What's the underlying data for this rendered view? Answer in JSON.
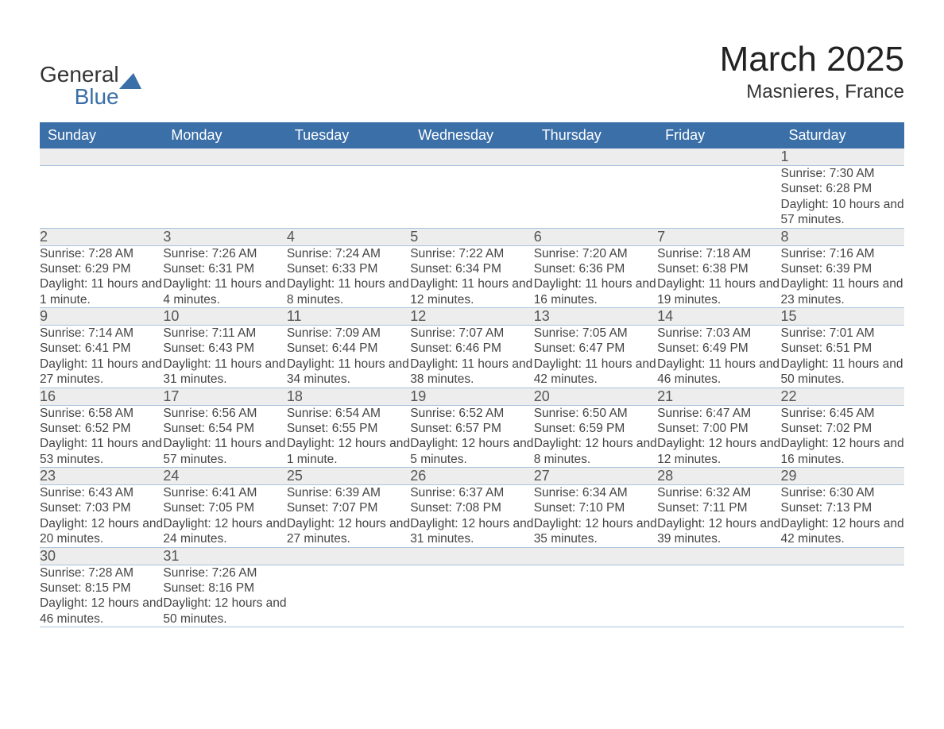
{
  "brand": {
    "line1": "General",
    "line2": "Blue"
  },
  "title": "March 2025",
  "location": "Masnieres, France",
  "colors": {
    "header_bg": "#3b6fa8",
    "header_text": "#ffffff",
    "daynum_bg": "#ededed",
    "row_divider": "#3b6fa8",
    "body_text": "#444444",
    "page_bg": "#ffffff"
  },
  "typography": {
    "title_fontsize": 44,
    "location_fontsize": 24,
    "header_fontsize": 18,
    "daynum_fontsize": 18,
    "cell_fontsize": 15.5
  },
  "weekdays": [
    "Sunday",
    "Monday",
    "Tuesday",
    "Wednesday",
    "Thursday",
    "Friday",
    "Saturday"
  ],
  "weeks": [
    [
      null,
      null,
      null,
      null,
      null,
      null,
      {
        "n": "1",
        "sunrise": "7:30 AM",
        "sunset": "6:28 PM",
        "daylight": "10 hours and 57 minutes."
      }
    ],
    [
      {
        "n": "2",
        "sunrise": "7:28 AM",
        "sunset": "6:29 PM",
        "daylight": "11 hours and 1 minute."
      },
      {
        "n": "3",
        "sunrise": "7:26 AM",
        "sunset": "6:31 PM",
        "daylight": "11 hours and 4 minutes."
      },
      {
        "n": "4",
        "sunrise": "7:24 AM",
        "sunset": "6:33 PM",
        "daylight": "11 hours and 8 minutes."
      },
      {
        "n": "5",
        "sunrise": "7:22 AM",
        "sunset": "6:34 PM",
        "daylight": "11 hours and 12 minutes."
      },
      {
        "n": "6",
        "sunrise": "7:20 AM",
        "sunset": "6:36 PM",
        "daylight": "11 hours and 16 minutes."
      },
      {
        "n": "7",
        "sunrise": "7:18 AM",
        "sunset": "6:38 PM",
        "daylight": "11 hours and 19 minutes."
      },
      {
        "n": "8",
        "sunrise": "7:16 AM",
        "sunset": "6:39 PM",
        "daylight": "11 hours and 23 minutes."
      }
    ],
    [
      {
        "n": "9",
        "sunrise": "7:14 AM",
        "sunset": "6:41 PM",
        "daylight": "11 hours and 27 minutes."
      },
      {
        "n": "10",
        "sunrise": "7:11 AM",
        "sunset": "6:43 PM",
        "daylight": "11 hours and 31 minutes."
      },
      {
        "n": "11",
        "sunrise": "7:09 AM",
        "sunset": "6:44 PM",
        "daylight": "11 hours and 34 minutes."
      },
      {
        "n": "12",
        "sunrise": "7:07 AM",
        "sunset": "6:46 PM",
        "daylight": "11 hours and 38 minutes."
      },
      {
        "n": "13",
        "sunrise": "7:05 AM",
        "sunset": "6:47 PM",
        "daylight": "11 hours and 42 minutes."
      },
      {
        "n": "14",
        "sunrise": "7:03 AM",
        "sunset": "6:49 PM",
        "daylight": "11 hours and 46 minutes."
      },
      {
        "n": "15",
        "sunrise": "7:01 AM",
        "sunset": "6:51 PM",
        "daylight": "11 hours and 50 minutes."
      }
    ],
    [
      {
        "n": "16",
        "sunrise": "6:58 AM",
        "sunset": "6:52 PM",
        "daylight": "11 hours and 53 minutes."
      },
      {
        "n": "17",
        "sunrise": "6:56 AM",
        "sunset": "6:54 PM",
        "daylight": "11 hours and 57 minutes."
      },
      {
        "n": "18",
        "sunrise": "6:54 AM",
        "sunset": "6:55 PM",
        "daylight": "12 hours and 1 minute."
      },
      {
        "n": "19",
        "sunrise": "6:52 AM",
        "sunset": "6:57 PM",
        "daylight": "12 hours and 5 minutes."
      },
      {
        "n": "20",
        "sunrise": "6:50 AM",
        "sunset": "6:59 PM",
        "daylight": "12 hours and 8 minutes."
      },
      {
        "n": "21",
        "sunrise": "6:47 AM",
        "sunset": "7:00 PM",
        "daylight": "12 hours and 12 minutes."
      },
      {
        "n": "22",
        "sunrise": "6:45 AM",
        "sunset": "7:02 PM",
        "daylight": "12 hours and 16 minutes."
      }
    ],
    [
      {
        "n": "23",
        "sunrise": "6:43 AM",
        "sunset": "7:03 PM",
        "daylight": "12 hours and 20 minutes."
      },
      {
        "n": "24",
        "sunrise": "6:41 AM",
        "sunset": "7:05 PM",
        "daylight": "12 hours and 24 minutes."
      },
      {
        "n": "25",
        "sunrise": "6:39 AM",
        "sunset": "7:07 PM",
        "daylight": "12 hours and 27 minutes."
      },
      {
        "n": "26",
        "sunrise": "6:37 AM",
        "sunset": "7:08 PM",
        "daylight": "12 hours and 31 minutes."
      },
      {
        "n": "27",
        "sunrise": "6:34 AM",
        "sunset": "7:10 PM",
        "daylight": "12 hours and 35 minutes."
      },
      {
        "n": "28",
        "sunrise": "6:32 AM",
        "sunset": "7:11 PM",
        "daylight": "12 hours and 39 minutes."
      },
      {
        "n": "29",
        "sunrise": "6:30 AM",
        "sunset": "7:13 PM",
        "daylight": "12 hours and 42 minutes."
      }
    ],
    [
      {
        "n": "30",
        "sunrise": "7:28 AM",
        "sunset": "8:15 PM",
        "daylight": "12 hours and 46 minutes."
      },
      {
        "n": "31",
        "sunrise": "7:26 AM",
        "sunset": "8:16 PM",
        "daylight": "12 hours and 50 minutes."
      },
      null,
      null,
      null,
      null,
      null
    ]
  ],
  "labels": {
    "sunrise_prefix": "Sunrise: ",
    "sunset_prefix": "Sunset: ",
    "daylight_prefix": "Daylight: "
  }
}
